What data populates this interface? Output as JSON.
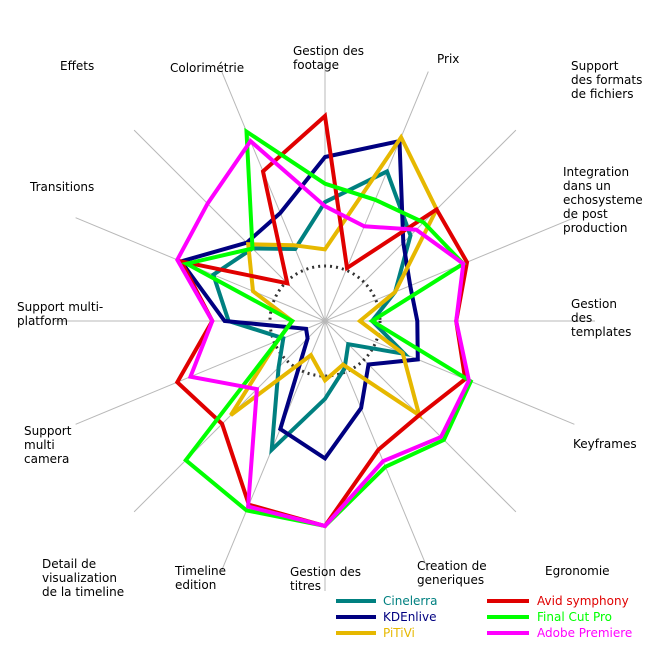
{
  "chart_data": {
    "type": "radar",
    "title": "",
    "max": 10,
    "grid": true,
    "legend_position": "bottom-right",
    "axes": [
      {
        "lines": [
          "Gestion des",
          "footage"
        ]
      },
      {
        "lines": [
          "Prix"
        ]
      },
      {
        "lines": [
          "Support",
          "des formats",
          "de fichiers"
        ]
      },
      {
        "lines": [
          "Integration",
          "dans un",
          "echosysteme",
          "de post",
          "production"
        ]
      },
      {
        "lines": [
          "Gestion",
          "des",
          "templates"
        ]
      },
      {
        "lines": [
          "Keyframes"
        ]
      },
      {
        "lines": [
          "Egronomie"
        ]
      },
      {
        "lines": [
          "Creation de",
          "generiques"
        ]
      },
      {
        "lines": [
          "Gestion des",
          "titres"
        ]
      },
      {
        "lines": [
          "Timeline",
          "edition"
        ]
      },
      {
        "lines": [
          "Detail de",
          "visualization",
          "de la timeline"
        ]
      },
      {
        "lines": [
          "Support",
          "multi",
          "camera"
        ]
      },
      {
        "lines": [
          "Support multi-",
          "platform"
        ]
      },
      {
        "lines": [
          "Transitions"
        ]
      },
      {
        "lines": [
          "Effets"
        ]
      },
      {
        "lines": [
          "Colorimétrie"
        ]
      }
    ],
    "series": [
      {
        "name": "Cinelerra",
        "color": "#008080",
        "values": [
          5.8,
          7.9,
          5.9,
          3.7,
          2.3,
          4.2,
          1.6,
          2.5,
          3.8,
          6.8,
          3.2,
          2.2,
          4.7,
          5.9,
          5.0,
          3.8
        ]
      },
      {
        "name": "KDEnlive",
        "color": "#000080",
        "values": [
          8.0,
          9.5,
          5.4,
          4.5,
          4.5,
          4.9,
          3.0,
          4.6,
          6.7,
          5.7,
          1.2,
          1.0,
          4.9,
          7.6,
          5.4,
          5.7
        ]
      },
      {
        "name": "PiTiVi",
        "color": "#e6b800",
        "values": [
          3.5,
          9.7,
          7.7,
          3.7,
          1.7,
          4.1,
          6.5,
          2.3,
          2.9,
          1.8,
          6.5,
          2.5,
          1.6,
          3.8,
          5.3,
          4.0
        ]
      },
      {
        "name": "Avid symphony",
        "color": "#e00000",
        "values": [
          10.0,
          2.8,
          7.7,
          7.5,
          6.4,
          7.4,
          6.5,
          6.8,
          10.0,
          9.7,
          7.1,
          7.8,
          5.5,
          7.6,
          2.6,
          7.9
        ]
      },
      {
        "name": "Final Cut Pro",
        "color": "#00ff00",
        "values": [
          6.7,
          6.4,
          6.8,
          7.3,
          2.3,
          7.7,
          8.2,
          7.7,
          10.0,
          10.0,
          9.6,
          2.5,
          1.6,
          7.3,
          5.0,
          10.0
        ]
      },
      {
        "name": "Adobe Premiere",
        "color": "#ff00ff",
        "values": [
          5.6,
          5.0,
          6.3,
          7.3,
          6.4,
          7.6,
          8.0,
          7.4,
          10.0,
          9.8,
          4.7,
          7.1,
          5.5,
          7.8,
          8.1,
          9.5
        ]
      }
    ]
  }
}
